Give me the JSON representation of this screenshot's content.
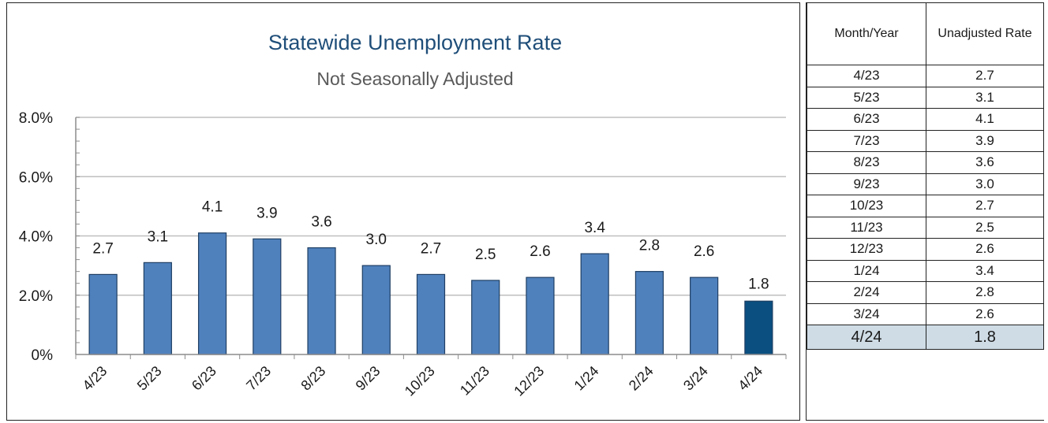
{
  "chart_data": {
    "type": "bar",
    "title": "Statewide Unemployment Rate",
    "subtitle": "Not Seasonally Adjusted",
    "categories": [
      "4/23",
      "5/23",
      "6/23",
      "7/23",
      "8/23",
      "9/23",
      "10/23",
      "11/23",
      "12/23",
      "1/24",
      "2/24",
      "3/24",
      "4/24"
    ],
    "values": [
      2.7,
      3.1,
      4.1,
      3.9,
      3.6,
      3.0,
      2.7,
      2.5,
      2.6,
      3.4,
      2.8,
      2.6,
      1.8
    ],
    "data_labels": [
      "2.7",
      "3.1",
      "4.1",
      "3.9",
      "3.6",
      "3.0",
      "2.7",
      "2.5",
      "2.6",
      "3.4",
      "2.8",
      "2.6",
      "1.8"
    ],
    "y_ticks": [
      0,
      2,
      4,
      6,
      8
    ],
    "y_tick_labels": [
      "0%",
      "2.0%",
      "4.0%",
      "6.0%",
      "8.0%"
    ],
    "ylim": [
      0,
      8
    ],
    "grid": true,
    "colors": {
      "bar": "#4f81bd",
      "bar_highlight": "#0a4f80",
      "grid": "#bfbfbf",
      "title": "#1f4e79"
    }
  },
  "table": {
    "headers": [
      "Month/Year",
      "Unadjusted Rate"
    ],
    "rows": [
      [
        "4/23",
        "2.7"
      ],
      [
        "5/23",
        "3.1"
      ],
      [
        "6/23",
        "4.1"
      ],
      [
        "7/23",
        "3.9"
      ],
      [
        "8/23",
        "3.6"
      ],
      [
        "9/23",
        "3.0"
      ],
      [
        "10/23",
        "2.7"
      ],
      [
        "11/23",
        "2.5"
      ],
      [
        "12/23",
        "2.6"
      ],
      [
        "1/24",
        "3.4"
      ],
      [
        "2/24",
        "2.8"
      ],
      [
        "3/24",
        "2.6"
      ]
    ],
    "highlight_row": [
      "4/24",
      "1.8"
    ]
  }
}
